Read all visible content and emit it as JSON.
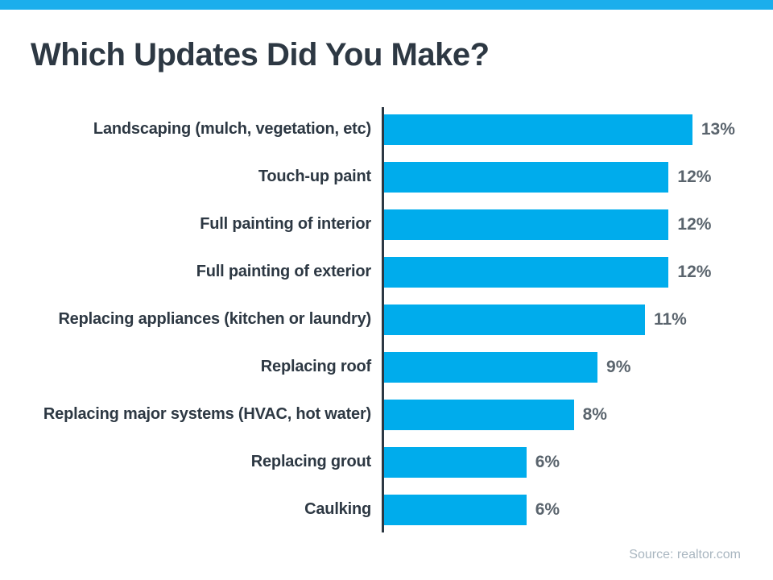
{
  "page": {
    "title": "Which Updates Did You Make?",
    "source_caption": "Source: realtor.com"
  },
  "colors": {
    "background": "#FFFFFF",
    "top_stripe": "#1BAEEC",
    "bar": "#00ACEC",
    "title_text": "#2D3843",
    "label_text": "#2D3843",
    "percent_text": "#5A646D",
    "axis_line": "#2D3843",
    "source_text": "#A9B6C0"
  },
  "chart_data": {
    "type": "bar",
    "orientation": "horizontal",
    "title": "Which Updates Did You Make?",
    "categories": [
      "Landscaping (mulch, vegetation, etc)",
      "Touch-up paint",
      "Full painting of interior",
      "Full painting of exterior",
      "Replacing appliances (kitchen or laundry)",
      "Replacing roof",
      "Replacing major systems (HVAC, hot water)",
      "Replacing grout",
      "Caulking"
    ],
    "values": [
      13,
      12,
      12,
      12,
      11,
      9,
      8,
      6,
      6
    ],
    "value_labels": [
      "13%",
      "12%",
      "12%",
      "12%",
      "11%",
      "9%",
      "8%",
      "6%",
      "6%"
    ],
    "unit": "%",
    "xlim": [
      0,
      16.4
    ],
    "grid": false,
    "legend": false,
    "source": "realtor.com"
  }
}
